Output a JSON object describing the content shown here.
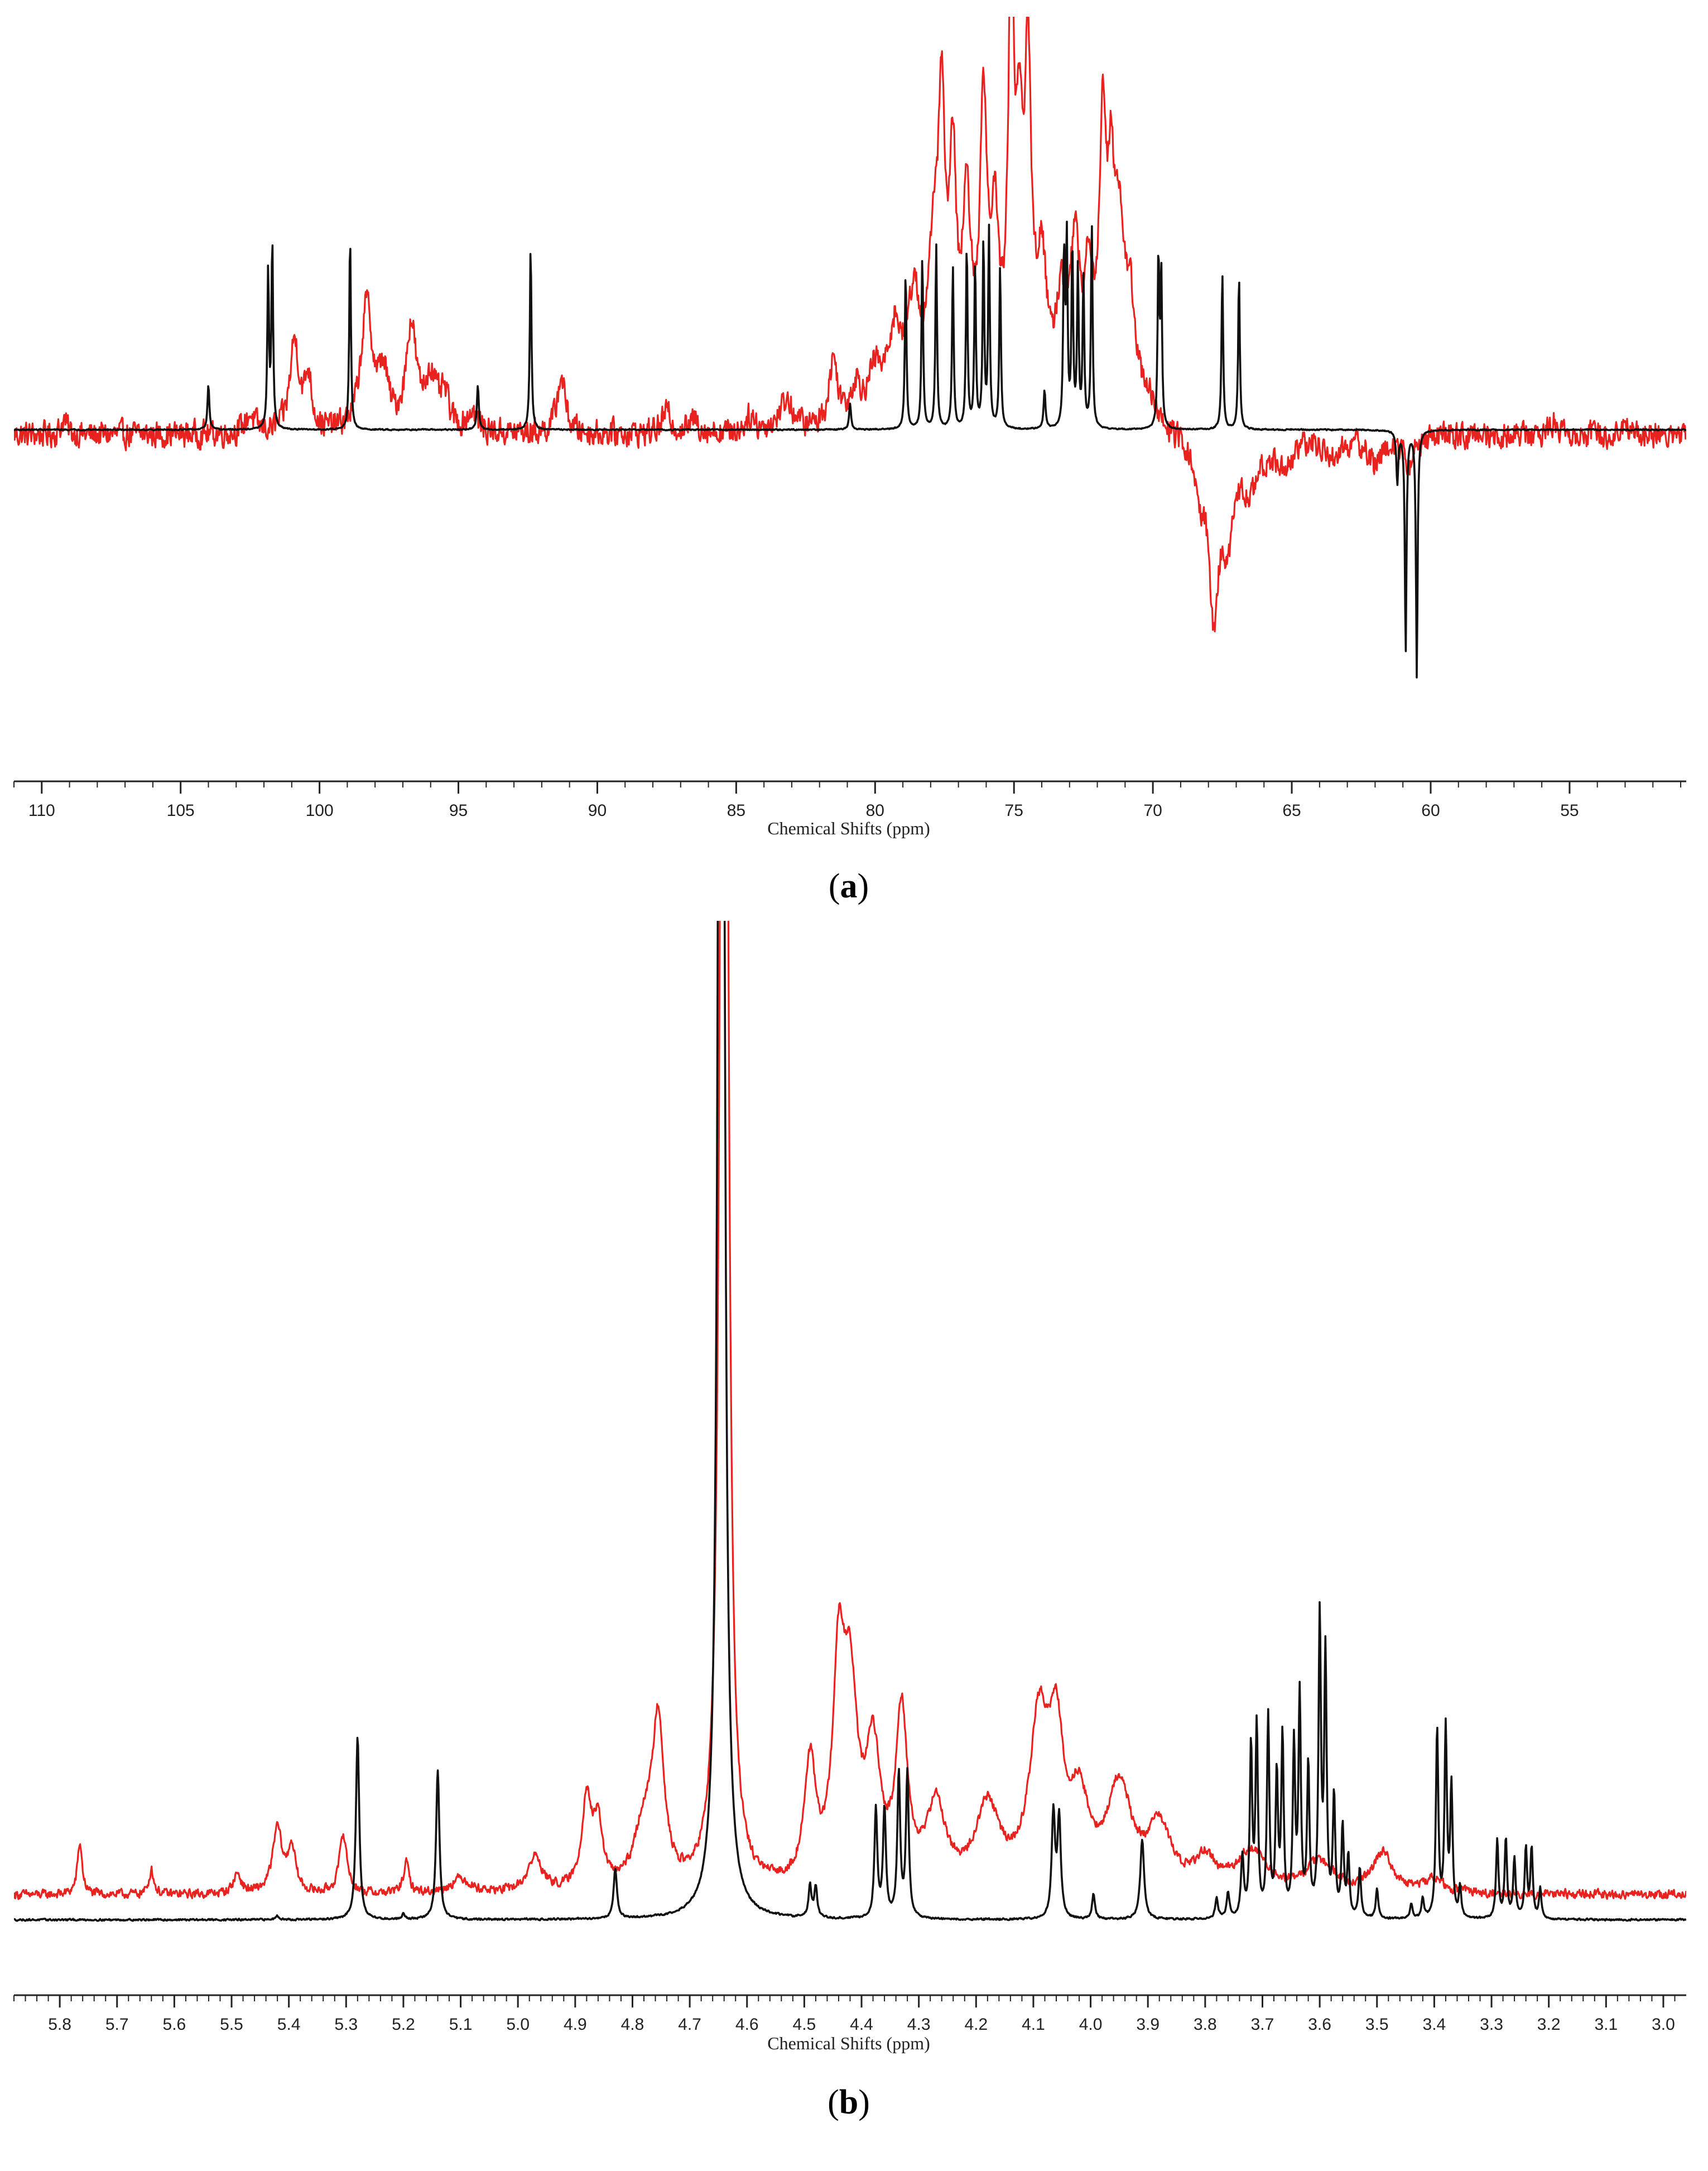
{
  "chart_data": [
    {
      "type": "line",
      "panel_label": "a",
      "xlabel": "Chemical Shifts (ppm)",
      "xlim": [
        111,
        50.8
      ],
      "x_reversed": true,
      "ticks": [
        110,
        105,
        100,
        95,
        90,
        85,
        80,
        75,
        70,
        65,
        60,
        55
      ],
      "colors": {
        "red": "#e8231f",
        "black": "#111111"
      },
      "baseline": 0,
      "ylim": [
        -1.0,
        1.6
      ],
      "series": [
        {
          "color": "red",
          "noise": 0.045,
          "offset": -0.02,
          "peaks": [
            [
              109.2,
              0.06,
              0.12
            ],
            [
              102.5,
              0.07,
              0.2
            ],
            [
              100.9,
              0.35,
              0.2
            ],
            [
              100.4,
              0.2,
              0.15
            ],
            [
              98.3,
              0.48,
              0.25
            ],
            [
              97.7,
              0.2,
              0.2
            ],
            [
              96.7,
              0.4,
              0.22
            ],
            [
              96.0,
              0.2,
              0.25
            ],
            [
              95.5,
              0.12,
              0.2
            ],
            [
              94.5,
              0.08,
              0.2
            ],
            [
              91.3,
              0.22,
              0.18
            ],
            [
              87.5,
              0.08,
              0.2
            ],
            [
              86.5,
              0.05,
              0.2
            ],
            [
              84.5,
              0.06,
              0.2
            ],
            [
              83.2,
              0.12,
              0.3
            ],
            [
              81.5,
              0.25,
              0.2
            ],
            [
              80.7,
              0.14,
              0.25
            ],
            [
              80.0,
              0.18,
              0.3
            ],
            [
              79.3,
              0.32,
              0.3
            ],
            [
              78.6,
              0.45,
              0.3
            ],
            [
              77.9,
              0.55,
              0.2
            ],
            [
              77.6,
              1.08,
              0.15
            ],
            [
              77.2,
              0.85,
              0.15
            ],
            [
              76.7,
              0.75,
              0.2
            ],
            [
              76.1,
              1.1,
              0.15
            ],
            [
              75.7,
              0.65,
              0.2
            ],
            [
              75.1,
              1.58,
              0.13
            ],
            [
              74.8,
              0.8,
              0.15
            ],
            [
              74.5,
              1.18,
              0.15
            ],
            [
              74.0,
              0.52,
              0.25
            ],
            [
              73.3,
              0.38,
              0.25
            ],
            [
              72.8,
              0.6,
              0.2
            ],
            [
              72.3,
              0.5,
              0.2
            ],
            [
              71.8,
              1.03,
              0.15
            ],
            [
              71.5,
              0.7,
              0.15
            ],
            [
              71.2,
              0.62,
              0.2
            ],
            [
              70.8,
              0.4,
              0.25
            ],
            [
              70.2,
              0.1,
              0.25
            ],
            [
              68.3,
              -0.2,
              0.25
            ],
            [
              67.8,
              -0.63,
              0.2
            ],
            [
              67.3,
              -0.35,
              0.25
            ],
            [
              66.5,
              -0.18,
              0.4
            ],
            [
              65.3,
              -0.1,
              0.4
            ],
            [
              63.5,
              -0.07,
              0.4
            ],
            [
              62.0,
              -0.1,
              0.3
            ],
            [
              60.8,
              -0.12,
              0.2
            ],
            [
              55.5,
              0.05,
              0.2
            ],
            [
              53.0,
              0.04,
              0.2
            ]
          ]
        },
        {
          "color": "black",
          "noise": 0.002,
          "offset": 0,
          "peaks": [
            [
              104.0,
              0.17,
              0.04
            ],
            [
              101.85,
              0.6,
              0.035
            ],
            [
              101.7,
              0.71,
              0.035
            ],
            [
              98.9,
              0.74,
              0.035
            ],
            [
              94.3,
              0.17,
              0.04
            ],
            [
              92.4,
              0.7,
              0.035
            ],
            [
              80.9,
              0.1,
              0.04
            ],
            [
              78.9,
              0.6,
              0.035
            ],
            [
              78.3,
              0.66,
              0.035
            ],
            [
              77.8,
              0.7,
              0.035
            ],
            [
              77.2,
              0.62,
              0.035
            ],
            [
              76.7,
              0.7,
              0.035
            ],
            [
              76.4,
              0.63,
              0.035
            ],
            [
              76.1,
              0.71,
              0.035
            ],
            [
              75.9,
              0.75,
              0.035
            ],
            [
              75.5,
              0.62,
              0.035
            ],
            [
              73.9,
              0.15,
              0.04
            ],
            [
              73.2,
              0.65,
              0.035
            ],
            [
              73.1,
              0.7,
              0.035
            ],
            [
              72.9,
              0.69,
              0.035
            ],
            [
              72.7,
              0.6,
              0.035
            ],
            [
              72.5,
              0.57,
              0.035
            ],
            [
              72.2,
              0.78,
              0.035
            ],
            [
              69.8,
              0.65,
              0.035
            ],
            [
              69.7,
              0.59,
              0.035
            ],
            [
              67.5,
              0.6,
              0.035
            ],
            [
              66.9,
              0.59,
              0.035
            ],
            [
              61.2,
              -0.2,
              0.04
            ],
            [
              60.9,
              -0.85,
              0.035
            ],
            [
              60.5,
              -0.94,
              0.035
            ]
          ]
        }
      ]
    },
    {
      "type": "line",
      "panel_label": "b",
      "xlabel": "Chemical Shifts (ppm)",
      "xlim": [
        5.88,
        2.96
      ],
      "x_reversed": true,
      "ticks": [
        5.8,
        5.7,
        5.6,
        5.5,
        5.4,
        5.3,
        5.2,
        5.1,
        5.0,
        4.9,
        4.8,
        4.7,
        4.6,
        4.5,
        4.4,
        4.3,
        4.2,
        4.1,
        4.0,
        3.9,
        3.8,
        3.7,
        3.6,
        3.5,
        3.4,
        3.3,
        3.2,
        3.1,
        3.0
      ],
      "colors": {
        "red": "#e8231f",
        "black": "#111111"
      },
      "baseline_red": 0.025,
      "baseline_black": 0,
      "ylim": [
        0,
        1.0
      ],
      "series": [
        {
          "color": "red",
          "noise": 0.004,
          "baseline": 0.025,
          "peaks": [
            [
              5.765,
              0.052,
              0.005
            ],
            [
              5.64,
              0.025,
              0.005
            ],
            [
              5.49,
              0.02,
              0.008
            ],
            [
              5.42,
              0.065,
              0.01
            ],
            [
              5.395,
              0.045,
              0.008
            ],
            [
              5.305,
              0.06,
              0.008
            ],
            [
              5.195,
              0.03,
              0.006
            ],
            [
              5.1,
              0.015,
              0.02
            ],
            [
              4.97,
              0.035,
              0.015
            ],
            [
              4.88,
              0.09,
              0.01
            ],
            [
              4.86,
              0.06,
              0.01
            ],
            [
              4.78,
              0.06,
              0.02
            ],
            [
              4.755,
              0.16,
              0.012
            ],
            [
              4.64,
              2.5,
              0.006
            ],
            [
              4.49,
              0.12,
              0.012
            ],
            [
              4.44,
              0.2,
              0.012
            ],
            [
              4.42,
              0.18,
              0.015
            ],
            [
              4.38,
              0.13,
              0.015
            ],
            [
              4.33,
              0.17,
              0.012
            ],
            [
              4.27,
              0.08,
              0.02
            ],
            [
              4.18,
              0.08,
              0.025
            ],
            [
              4.09,
              0.16,
              0.02
            ],
            [
              4.06,
              0.13,
              0.015
            ],
            [
              4.02,
              0.08,
              0.02
            ],
            [
              3.95,
              0.1,
              0.025
            ],
            [
              3.88,
              0.06,
              0.025
            ],
            [
              3.8,
              0.03,
              0.02
            ],
            [
              3.72,
              0.04,
              0.03
            ],
            [
              3.6,
              0.03,
              0.03
            ],
            [
              3.49,
              0.04,
              0.02
            ],
            [
              3.4,
              0.015,
              0.02
            ]
          ]
        },
        {
          "color": "black",
          "noise": 0.0008,
          "baseline": 0,
          "peaks": [
            [
              5.42,
              0.004,
              0.004
            ],
            [
              5.28,
              0.185,
              0.0035
            ],
            [
              5.2,
              0.006,
              0.003
            ],
            [
              5.14,
              0.15,
              0.0035
            ],
            [
              4.83,
              0.05,
              0.0035
            ],
            [
              4.645,
              2.8,
              0.0045
            ],
            [
              4.49,
              0.032,
              0.003
            ],
            [
              4.48,
              0.032,
              0.003
            ],
            [
              4.375,
              0.11,
              0.003
            ],
            [
              4.36,
              0.11,
              0.003
            ],
            [
              4.335,
              0.145,
              0.003
            ],
            [
              4.32,
              0.145,
              0.003
            ],
            [
              4.065,
              0.105,
              0.0035
            ],
            [
              4.055,
              0.1,
              0.0035
            ],
            [
              3.995,
              0.025,
              0.003
            ],
            [
              3.91,
              0.08,
              0.004
            ],
            [
              3.78,
              0.02,
              0.003
            ],
            [
              3.76,
              0.025,
              0.003
            ],
            [
              3.735,
              0.06,
              0.003
            ],
            [
              3.72,
              0.17,
              0.0025
            ],
            [
              3.71,
              0.19,
              0.0025
            ],
            [
              3.69,
              0.2,
              0.0025
            ],
            [
              3.675,
              0.14,
              0.0025
            ],
            [
              3.665,
              0.18,
              0.0025
            ],
            [
              3.645,
              0.17,
              0.0025
            ],
            [
              3.635,
              0.22,
              0.0025
            ],
            [
              3.62,
              0.15,
              0.0025
            ],
            [
              3.6,
              0.3,
              0.0025
            ],
            [
              3.59,
              0.26,
              0.0025
            ],
            [
              3.575,
              0.12,
              0.0025
            ],
            [
              3.56,
              0.09,
              0.0025
            ],
            [
              3.55,
              0.06,
              0.0025
            ],
            [
              3.53,
              0.05,
              0.0025
            ],
            [
              3.5,
              0.03,
              0.0025
            ],
            [
              3.44,
              0.015,
              0.0025
            ],
            [
              3.42,
              0.02,
              0.0025
            ],
            [
              3.395,
              0.19,
              0.0025
            ],
            [
              3.38,
              0.19,
              0.0025
            ],
            [
              3.37,
              0.13,
              0.0025
            ],
            [
              3.355,
              0.03,
              0.0025
            ],
            [
              3.29,
              0.08,
              0.0025
            ],
            [
              3.275,
              0.08,
              0.0025
            ],
            [
              3.26,
              0.06,
              0.0025
            ],
            [
              3.24,
              0.07,
              0.0025
            ],
            [
              3.23,
              0.07,
              0.0025
            ],
            [
              3.215,
              0.03,
              0.0025
            ]
          ]
        }
      ]
    }
  ]
}
